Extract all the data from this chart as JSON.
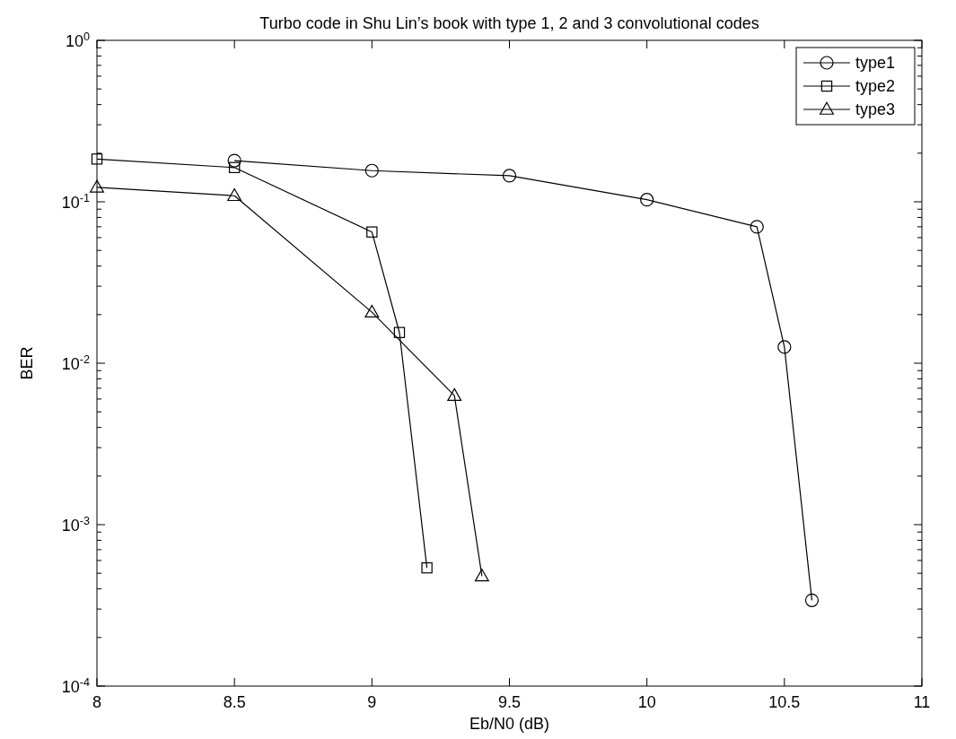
{
  "chart_data": {
    "type": "line",
    "title": "Turbo code in Shu Lin’s book with type 1, 2 and 3 convolutional codes",
    "xlabel": "Eb/N0 (dB)",
    "ylabel": "BER",
    "log": "y",
    "grid": false,
    "legend": "top right",
    "xlim": [
      8,
      11
    ],
    "xticks": [
      8,
      8.5,
      9,
      9.5,
      10,
      10.5,
      11
    ],
    "ylim": [
      0.0001,
      1
    ],
    "yticks": [
      {
        "value": 0.0001,
        "label": "10$^{-4}$"
      },
      {
        "value": 0.001,
        "label": "10$^{-3}$"
      },
      {
        "value": 0.01,
        "label": "10$^{-2}$"
      },
      {
        "value": 0.1,
        "label": "10$^{-1}$"
      },
      {
        "value": 1,
        "label": "10$^{0}$"
      }
    ],
    "series": [
      {
        "name": "type1",
        "color": "#000000",
        "marker": "circle",
        "line_style": "solid",
        "x": [
          8.5,
          9,
          9.5,
          10,
          10.4,
          10.5,
          10.6
        ],
        "values": [
          0.18,
          0.156,
          0.145,
          0.103,
          0.07,
          0.0126,
          0.00034
        ]
      },
      {
        "name": "type2",
        "color": "#000000",
        "marker": "square",
        "line_style": "solid",
        "x": [
          8,
          8.5,
          9,
          9.1,
          9.2
        ],
        "values": [
          0.184,
          0.163,
          0.065,
          0.0155,
          0.00054
        ]
      },
      {
        "name": "type3",
        "color": "#000000",
        "marker": "triangle",
        "line_style": "solid",
        "x": [
          8,
          8.5,
          9,
          9.3,
          9.4
        ],
        "values": [
          0.123,
          0.109,
          0.0207,
          0.0063,
          0.00048
        ]
      }
    ]
  }
}
